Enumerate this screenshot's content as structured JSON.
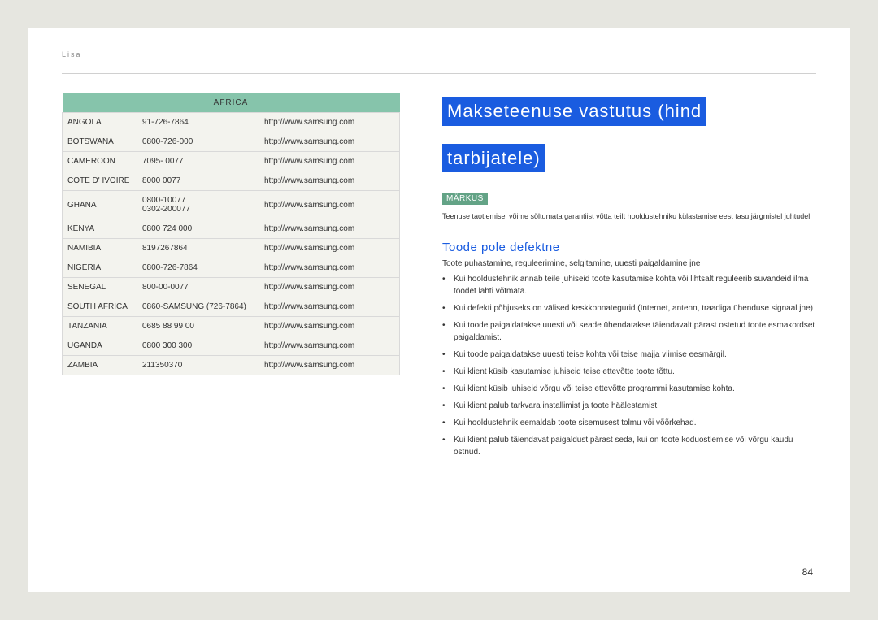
{
  "header": {
    "section_label": "Lisa"
  },
  "table": {
    "region_header": "AFRICA",
    "rows": [
      {
        "country": "ANGOLA",
        "phone": "91-726-7864",
        "url": "http://www.samsung.com"
      },
      {
        "country": "BOTSWANA",
        "phone": "0800-726-000",
        "url": "http://www.samsung.com"
      },
      {
        "country": "CAMEROON",
        "phone": "7095- 0077",
        "url": "http://www.samsung.com"
      },
      {
        "country": "COTE D' IVOIRE",
        "phone": "8000 0077",
        "url": "http://www.samsung.com"
      },
      {
        "country": "GHANA",
        "phone": "0800-10077\n0302-200077",
        "url": "http://www.samsung.com"
      },
      {
        "country": "KENYA",
        "phone": "0800 724 000",
        "url": "http://www.samsung.com"
      },
      {
        "country": "NAMIBIA",
        "phone": "8197267864",
        "url": "http://www.samsung.com"
      },
      {
        "country": "NIGERIA",
        "phone": "0800-726-7864",
        "url": "http://www.samsung.com"
      },
      {
        "country": "SENEGAL",
        "phone": "800-00-0077",
        "url": "http://www.samsung.com"
      },
      {
        "country": "SOUTH AFRICA",
        "phone": "0860-SAMSUNG (726-7864)",
        "url": "http://www.samsung.com"
      },
      {
        "country": "TANZANIA",
        "phone": "0685 88 99 00",
        "url": "http://www.samsung.com"
      },
      {
        "country": "UGANDA",
        "phone": "0800 300 300",
        "url": "http://www.samsung.com"
      },
      {
        "country": "ZAMBIA",
        "phone": "211350370",
        "url": "http://www.samsung.com"
      }
    ]
  },
  "main": {
    "title_line1": "Makseteenuse vastutus (hind",
    "title_line2": "tarbijatele)",
    "note_badge": "MÄRKUS",
    "note_text": "Teenuse taotlemisel võime sõltumata garantiist võtta teilt hooldustehniku külastamise eest tasu järgmistel juhtudel.",
    "sub_heading": "Toode pole defektne",
    "lead": "Toote puhastamine, reguleerimine, selgitamine, uuesti paigaldamine jne",
    "bullets": [
      "Kui hooldustehnik annab teile juhiseid toote kasutamise kohta või lihtsalt reguleerib suvandeid ilma toodet lahti võtmata.",
      "Kui defekti põhjuseks on välised keskkonnategurid (Internet, antenn, traadiga ühenduse signaal jne)",
      "Kui toode paigaldatakse uuesti või seade ühendatakse täiendavalt pärast ostetud toote esmakordset paigaldamist.",
      "Kui toode paigaldatakse uuesti teise kohta või teise majja viimise eesmärgil.",
      "Kui klient küsib kasutamise juhiseid teise ettevõtte toote tõttu.",
      "Kui klient küsib juhiseid võrgu või teise ettevõtte programmi kasutamise kohta.",
      "Kui klient palub tarkvara installimist ja toote häälestamist.",
      "Kui hooldustehnik eemaldab toote sisemusest tolmu või võõrkehad.",
      "Kui klient palub täiendavat paigaldust pärast seda, kui on toote koduostlemise või võrgu kaudu ostnud."
    ]
  },
  "page_number": "84"
}
